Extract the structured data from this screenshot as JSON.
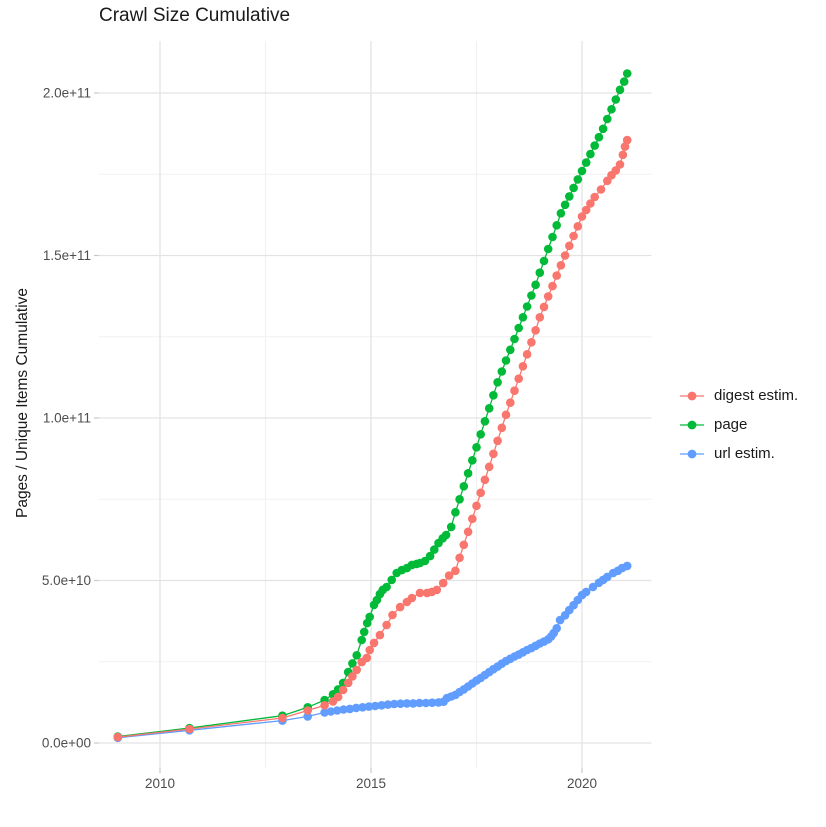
{
  "title": "Crawl Size Cumulative",
  "colors": {
    "digest": "#F8766D",
    "page": "#00BA38",
    "url": "#619CFF",
    "grid_major": "#e3e3e3",
    "grid_minor": "#f1f1f1",
    "tick_mark": "#c9c9c9",
    "axis_text": "#4d4d4d",
    "title_text": "#1a1a1a"
  },
  "chart_data": {
    "type": "line",
    "title": "Crawl Size Cumulative",
    "xlabel": "",
    "ylabel": "Pages / Unique Items Cumulative",
    "legend_position": "right",
    "grid": "on",
    "value_unit": "billions (1e9) of pages / unique items",
    "xlim": [
      2008.55,
      2021.65
    ],
    "ylim_e9": [
      0,
      216
    ],
    "x_ticks": [
      {
        "label": "2010",
        "year": 2010
      },
      {
        "label": "2015",
        "year": 2015
      },
      {
        "label": "2020",
        "year": 2020
      }
    ],
    "x_minor": [
      2012.5,
      2017.5
    ],
    "y_ticks": [
      {
        "label": "0.0e+00",
        "value_e9": 0
      },
      {
        "label": "5.0e+10",
        "value_e9": 50
      },
      {
        "label": "1.0e+11",
        "value_e9": 100
      },
      {
        "label": "1.5e+11",
        "value_e9": 150
      },
      {
        "label": "2.0e+11",
        "value_e9": 200
      }
    ],
    "y_minor": [
      25,
      75,
      125,
      175
    ],
    "series": [
      {
        "name": "digest estim.",
        "color": "#F8766D",
        "points": [
          [
            2009.0,
            1.8
          ],
          [
            2010.7,
            4.3
          ],
          [
            2012.9,
            7.7
          ],
          [
            2013.5,
            10.0
          ],
          [
            2013.9,
            11.6
          ],
          [
            2014.1,
            12.8
          ],
          [
            2014.22,
            14.2
          ],
          [
            2014.34,
            16.3
          ],
          [
            2014.46,
            18.5
          ],
          [
            2014.56,
            20.5
          ],
          [
            2014.66,
            22.5
          ],
          [
            2014.78,
            24.9
          ],
          [
            2014.9,
            26.2
          ],
          [
            2014.97,
            28.6
          ],
          [
            2015.07,
            30.8
          ],
          [
            2015.21,
            33.2
          ],
          [
            2015.37,
            36.3
          ],
          [
            2015.51,
            39.4
          ],
          [
            2015.69,
            41.8
          ],
          [
            2015.85,
            43.4
          ],
          [
            2015.97,
            44.6
          ],
          [
            2016.16,
            46.2
          ],
          [
            2016.33,
            46.2
          ],
          [
            2016.44,
            46.5
          ],
          [
            2016.56,
            47.1
          ],
          [
            2016.71,
            49.2
          ],
          [
            2016.85,
            51.5
          ],
          [
            2017.0,
            53
          ],
          [
            2017.1,
            57
          ],
          [
            2017.2,
            61
          ],
          [
            2017.3,
            65
          ],
          [
            2017.4,
            69
          ],
          [
            2017.5,
            73
          ],
          [
            2017.6,
            77
          ],
          [
            2017.7,
            81
          ],
          [
            2017.8,
            85
          ],
          [
            2017.9,
            89
          ],
          [
            2018.0,
            93
          ],
          [
            2018.1,
            97
          ],
          [
            2018.2,
            101
          ],
          [
            2018.3,
            104.7
          ],
          [
            2018.4,
            108.4
          ],
          [
            2018.5,
            112.1
          ],
          [
            2018.6,
            115.9
          ],
          [
            2018.7,
            119.6
          ],
          [
            2018.8,
            123.3
          ],
          [
            2018.9,
            127
          ],
          [
            2019.0,
            131
          ],
          [
            2019.1,
            134.2
          ],
          [
            2019.2,
            137.4
          ],
          [
            2019.3,
            140.6
          ],
          [
            2019.4,
            143.8
          ],
          [
            2019.5,
            147
          ],
          [
            2019.6,
            150
          ],
          [
            2019.7,
            153
          ],
          [
            2019.8,
            156
          ],
          [
            2019.9,
            159
          ],
          [
            2020.0,
            162
          ],
          [
            2020.1,
            164
          ],
          [
            2020.2,
            166
          ],
          [
            2020.3,
            168
          ],
          [
            2020.45,
            170.3
          ],
          [
            2020.6,
            173
          ],
          [
            2020.7,
            174.7
          ],
          [
            2020.8,
            176.2
          ],
          [
            2020.9,
            178
          ],
          [
            2020.97,
            181
          ],
          [
            2021.02,
            183.5
          ],
          [
            2021.07,
            185.5
          ]
        ]
      },
      {
        "name": "page",
        "color": "#00BA38",
        "points": [
          [
            2009.0,
            2.0
          ],
          [
            2010.7,
            4.6
          ],
          [
            2012.9,
            8.4
          ],
          [
            2013.5,
            11.0
          ],
          [
            2013.9,
            13.2
          ],
          [
            2014.1,
            15.0
          ],
          [
            2014.22,
            16.5
          ],
          [
            2014.34,
            18.5
          ],
          [
            2014.46,
            21.8
          ],
          [
            2014.56,
            24.5
          ],
          [
            2014.66,
            27.0
          ],
          [
            2014.78,
            31.7
          ],
          [
            2014.84,
            34.2
          ],
          [
            2014.91,
            36.9
          ],
          [
            2014.97,
            38.8
          ],
          [
            2015.07,
            42.5
          ],
          [
            2015.14,
            44.0
          ],
          [
            2015.21,
            45.8
          ],
          [
            2015.28,
            47.1
          ],
          [
            2015.37,
            48.0
          ],
          [
            2015.49,
            50.2
          ],
          [
            2015.61,
            52.3
          ],
          [
            2015.73,
            53.2
          ],
          [
            2015.85,
            53.8
          ],
          [
            2015.97,
            54.8
          ],
          [
            2016.08,
            55.1
          ],
          [
            2016.16,
            55.4
          ],
          [
            2016.28,
            56.0
          ],
          [
            2016.4,
            57.5
          ],
          [
            2016.5,
            59.5
          ],
          [
            2016.6,
            61.5
          ],
          [
            2016.7,
            63.0
          ],
          [
            2016.78,
            64.0
          ],
          [
            2016.9,
            66.5
          ],
          [
            2017.0,
            71
          ],
          [
            2017.1,
            75
          ],
          [
            2017.2,
            79
          ],
          [
            2017.3,
            83
          ],
          [
            2017.4,
            87
          ],
          [
            2017.5,
            91
          ],
          [
            2017.6,
            95
          ],
          [
            2017.7,
            99
          ],
          [
            2017.8,
            103
          ],
          [
            2017.9,
            107
          ],
          [
            2018.0,
            111
          ],
          [
            2018.1,
            114.3
          ],
          [
            2018.2,
            117.7
          ],
          [
            2018.3,
            121
          ],
          [
            2018.4,
            124.3
          ],
          [
            2018.5,
            127.7
          ],
          [
            2018.6,
            131
          ],
          [
            2018.7,
            134.3
          ],
          [
            2018.8,
            137.7
          ],
          [
            2018.9,
            141
          ],
          [
            2019.0,
            144.7
          ],
          [
            2019.1,
            148.3
          ],
          [
            2019.2,
            152
          ],
          [
            2019.3,
            155.7
          ],
          [
            2019.4,
            159.3
          ],
          [
            2019.5,
            163
          ],
          [
            2019.6,
            165.6
          ],
          [
            2019.7,
            168.2
          ],
          [
            2019.8,
            170.8
          ],
          [
            2019.9,
            173.4
          ],
          [
            2020.0,
            176
          ],
          [
            2020.1,
            178.6
          ],
          [
            2020.2,
            181.2
          ],
          [
            2020.3,
            183.8
          ],
          [
            2020.4,
            186.4
          ],
          [
            2020.5,
            189
          ],
          [
            2020.6,
            192
          ],
          [
            2020.7,
            195
          ],
          [
            2020.8,
            198
          ],
          [
            2020.9,
            201
          ],
          [
            2021.0,
            203.5
          ],
          [
            2021.07,
            206
          ]
        ]
      },
      {
        "name": "url estim.",
        "color": "#619CFF",
        "points": [
          [
            2009.0,
            1.6
          ],
          [
            2010.7,
            3.9
          ],
          [
            2012.9,
            6.9
          ],
          [
            2013.5,
            8.2
          ],
          [
            2013.9,
            9.4
          ],
          [
            2014.05,
            9.7
          ],
          [
            2014.2,
            10.0
          ],
          [
            2014.35,
            10.3
          ],
          [
            2014.5,
            10.5
          ],
          [
            2014.65,
            10.8
          ],
          [
            2014.8,
            11.0
          ],
          [
            2014.95,
            11.2
          ],
          [
            2015.1,
            11.4
          ],
          [
            2015.25,
            11.6
          ],
          [
            2015.4,
            11.8
          ],
          [
            2015.55,
            12.0
          ],
          [
            2015.7,
            12.1
          ],
          [
            2015.85,
            12.2
          ],
          [
            2016.0,
            12.2
          ],
          [
            2016.15,
            12.3
          ],
          [
            2016.3,
            12.3
          ],
          [
            2016.45,
            12.4
          ],
          [
            2016.6,
            12.5
          ],
          [
            2016.72,
            12.7
          ],
          [
            2016.8,
            13.8
          ],
          [
            2016.9,
            14.3
          ],
          [
            2017.0,
            14.8
          ],
          [
            2017.1,
            15.7
          ],
          [
            2017.2,
            16.5
          ],
          [
            2017.3,
            17.4
          ],
          [
            2017.4,
            18.3
          ],
          [
            2017.5,
            19.2
          ],
          [
            2017.6,
            20.0
          ],
          [
            2017.7,
            20.9
          ],
          [
            2017.8,
            21.8
          ],
          [
            2017.9,
            22.7
          ],
          [
            2018.0,
            23.5
          ],
          [
            2018.1,
            24.4
          ],
          [
            2018.2,
            25.2
          ],
          [
            2018.3,
            25.9
          ],
          [
            2018.4,
            26.6
          ],
          [
            2018.5,
            27.2
          ],
          [
            2018.6,
            27.9
          ],
          [
            2018.7,
            28.6
          ],
          [
            2018.8,
            29.2
          ],
          [
            2018.9,
            29.9
          ],
          [
            2019.0,
            30.6
          ],
          [
            2019.1,
            31.2
          ],
          [
            2019.2,
            31.9
          ],
          [
            2019.27,
            32.8
          ],
          [
            2019.33,
            33.8
          ],
          [
            2019.4,
            35.3
          ],
          [
            2019.48,
            37.8
          ],
          [
            2019.6,
            39.3
          ],
          [
            2019.7,
            40.9
          ],
          [
            2019.8,
            42.4
          ],
          [
            2019.9,
            44.0
          ],
          [
            2020.0,
            45.5
          ],
          [
            2020.1,
            46.5
          ],
          [
            2020.26,
            48.0
          ],
          [
            2020.4,
            49.3
          ],
          [
            2020.5,
            50.2
          ],
          [
            2020.6,
            51.1
          ],
          [
            2020.74,
            52.3
          ],
          [
            2020.85,
            53.0
          ],
          [
            2020.95,
            53.8
          ],
          [
            2021.07,
            54.5
          ]
        ]
      }
    ]
  }
}
